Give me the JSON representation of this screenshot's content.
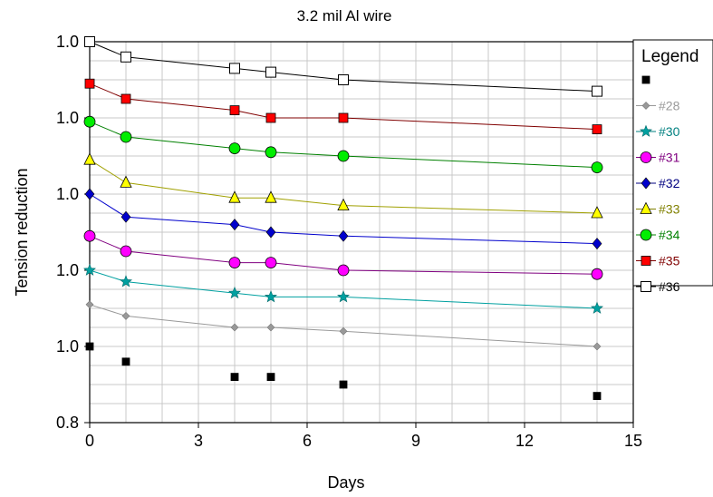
{
  "chart_data": {
    "type": "line",
    "title": "3.2 mil Al wire",
    "xlabel": "Days",
    "ylabel": "Tension reduction",
    "xlim": [
      0,
      15
    ],
    "xticks": [
      0,
      3,
      6,
      9,
      12,
      15
    ],
    "ytick_labels": [
      "1.0",
      "1.0",
      "1.0",
      "1.0",
      "1.0",
      "0.8"
    ],
    "grid": true,
    "legend": {
      "title": "Legend",
      "placement": "right"
    },
    "x": [
      0,
      1,
      4,
      5,
      7,
      14
    ],
    "series": [
      {
        "name": "",
        "color": "#000000",
        "marker": "square",
        "line": false,
        "values": [
          1.0,
          0.96,
          0.92,
          0.92,
          0.9,
          0.87
        ]
      },
      {
        "name": "#28",
        "color": "#999999",
        "marker": "diamond-small",
        "line": true,
        "values": [
          1.11,
          1.08,
          1.05,
          1.05,
          1.04,
          1.0
        ]
      },
      {
        "name": "#30",
        "color": "#00a0a0",
        "marker": "star",
        "line": true,
        "values": [
          1.2,
          1.17,
          1.14,
          1.13,
          1.13,
          1.1
        ]
      },
      {
        "name": "#31",
        "color": "#ff00ff",
        "marker": "circle",
        "line": true,
        "values": [
          1.29,
          1.25,
          1.22,
          1.22,
          1.2,
          1.19
        ]
      },
      {
        "name": "#32",
        "color": "#0000cc",
        "marker": "diamond",
        "line": true,
        "values": [
          1.4,
          1.34,
          1.32,
          1.3,
          1.29,
          1.27
        ]
      },
      {
        "name": "#33",
        "color": "#ffff00",
        "marker": "triangle",
        "line": true,
        "values": [
          1.49,
          1.43,
          1.39,
          1.39,
          1.37,
          1.35
        ]
      },
      {
        "name": "#34",
        "color": "#00ee00",
        "marker": "circle",
        "line": true,
        "values": [
          1.59,
          1.55,
          1.52,
          1.51,
          1.5,
          1.47
        ]
      },
      {
        "name": "#35",
        "color": "#ff0000",
        "marker": "square",
        "line": true,
        "values": [
          1.69,
          1.65,
          1.62,
          1.6,
          1.6,
          1.57
        ]
      },
      {
        "name": "#36",
        "color": "#ffffff",
        "marker": "square-open",
        "line": true,
        "values": [
          1.8,
          1.76,
          1.73,
          1.72,
          1.7,
          1.67
        ]
      }
    ]
  }
}
